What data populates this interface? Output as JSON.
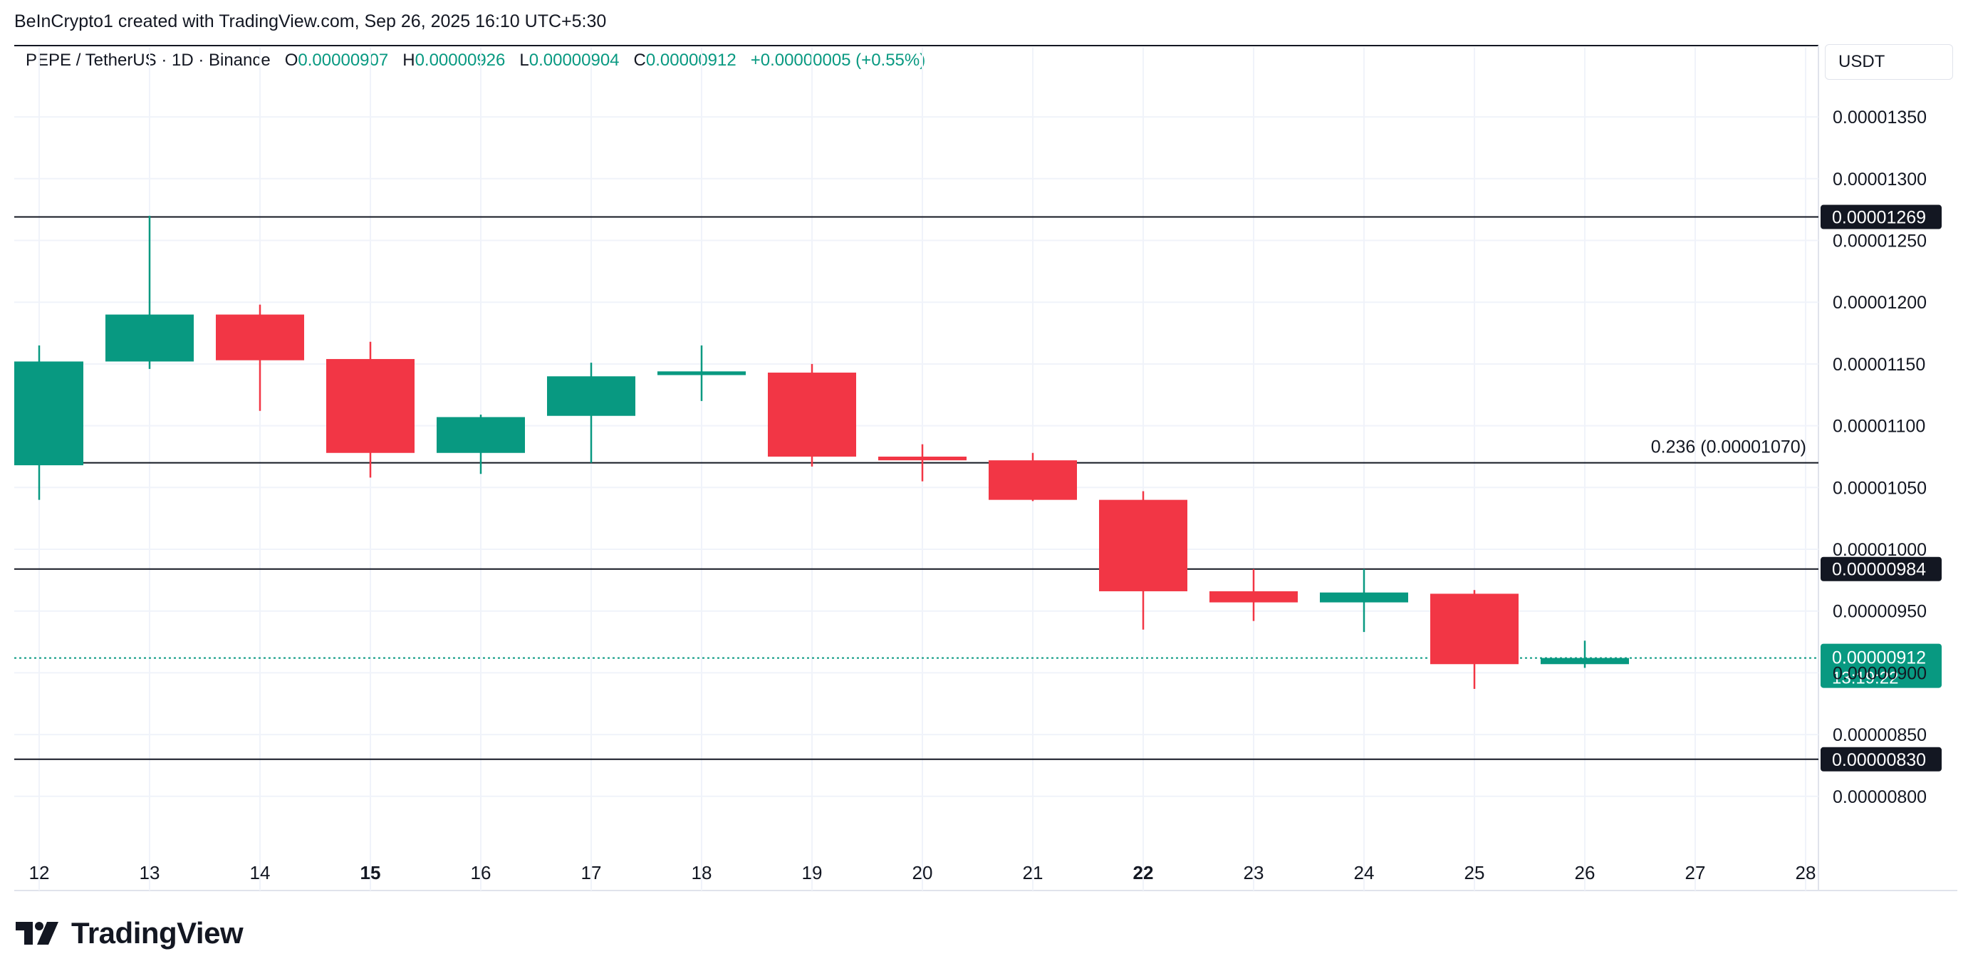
{
  "header": {
    "attribution": "BeInCrypto1 created with TradingView.com, Sep 26, 2025 16:10 UTC+5:30",
    "symbol": "PEPE / TetherUS · 1D · Binance",
    "open_label": "O",
    "open_value": "0.00000907",
    "high_label": "H",
    "high_value": "0.00000926",
    "low_label": "L",
    "low_value": "0.00000904",
    "close_label": "C",
    "close_value": "0.00000912",
    "change": "+0.00000005 (+0.55%)"
  },
  "price_scale": {
    "unit": "USDT"
  },
  "footer": {
    "brand": "TradingView"
  },
  "colors": {
    "up": "#089981",
    "down": "#f23645",
    "grid": "#f0f3fa",
    "line": "#131722"
  },
  "chart_data": {
    "type": "candlestick",
    "x_labels": [
      {
        "day": 12,
        "label": "12",
        "bold": false
      },
      {
        "day": 13,
        "label": "13",
        "bold": false
      },
      {
        "day": 14,
        "label": "14",
        "bold": false
      },
      {
        "day": 15,
        "label": "15",
        "bold": true
      },
      {
        "day": 16,
        "label": "16",
        "bold": false
      },
      {
        "day": 17,
        "label": "17",
        "bold": false
      },
      {
        "day": 18,
        "label": "18",
        "bold": false
      },
      {
        "day": 19,
        "label": "19",
        "bold": false
      },
      {
        "day": 20,
        "label": "20",
        "bold": false
      },
      {
        "day": 21,
        "label": "21",
        "bold": false
      },
      {
        "day": 22,
        "label": "22",
        "bold": true
      },
      {
        "day": 23,
        "label": "23",
        "bold": false
      },
      {
        "day": 24,
        "label": "24",
        "bold": false
      },
      {
        "day": 25,
        "label": "25",
        "bold": false
      },
      {
        "day": 26,
        "label": "26",
        "bold": false
      },
      {
        "day": 27,
        "label": "27",
        "bold": false
      },
      {
        "day": 28,
        "label": "28",
        "bold": false
      }
    ],
    "x_range": [
      11.8,
      28.1
    ],
    "y_ticks": [
      {
        "value": 1.35e-05,
        "label": "0.00001350"
      },
      {
        "value": 1.3e-05,
        "label": "0.00001300"
      },
      {
        "value": 1.25e-05,
        "label": "0.00001250"
      },
      {
        "value": 1.2e-05,
        "label": "0.00001200"
      },
      {
        "value": 1.15e-05,
        "label": "0.00001150"
      },
      {
        "value": 1.1e-05,
        "label": "0.00001100"
      },
      {
        "value": 1.05e-05,
        "label": "0.00001050"
      },
      {
        "value": 1e-05,
        "label": "0.00001000"
      },
      {
        "value": 9.5e-06,
        "label": "0.00000950"
      },
      {
        "value": 9e-06,
        "label": "0.00000900"
      },
      {
        "value": 8.5e-06,
        "label": "0.00000850"
      },
      {
        "value": 8e-06,
        "label": "0.00000800"
      }
    ],
    "candles": [
      {
        "day": 12,
        "open": 1.068e-05,
        "high": 1.165e-05,
        "low": 1.04e-05,
        "close": 1.152e-05
      },
      {
        "day": 13,
        "open": 1.152e-05,
        "high": 1.27e-05,
        "low": 1.146e-05,
        "close": 1.19e-05
      },
      {
        "day": 14,
        "open": 1.19e-05,
        "high": 1.198e-05,
        "low": 1.112e-05,
        "close": 1.153e-05
      },
      {
        "day": 15,
        "open": 1.154e-05,
        "high": 1.168e-05,
        "low": 1.058e-05,
        "close": 1.078e-05
      },
      {
        "day": 16,
        "open": 1.078e-05,
        "high": 1.109e-05,
        "low": 1.061e-05,
        "close": 1.107e-05
      },
      {
        "day": 17,
        "open": 1.108e-05,
        "high": 1.151e-05,
        "low": 1.07e-05,
        "close": 1.14e-05
      },
      {
        "day": 18,
        "open": 1.141e-05,
        "high": 1.165e-05,
        "low": 1.12e-05,
        "close": 1.144e-05
      },
      {
        "day": 19,
        "open": 1.143e-05,
        "high": 1.15e-05,
        "low": 1.067e-05,
        "close": 1.075e-05
      },
      {
        "day": 20,
        "open": 1.075e-05,
        "high": 1.085e-05,
        "low": 1.055e-05,
        "close": 1.072e-05
      },
      {
        "day": 21,
        "open": 1.072e-05,
        "high": 1.078e-05,
        "low": 1.039e-05,
        "close": 1.04e-05
      },
      {
        "day": 22,
        "open": 1.04e-05,
        "high": 1.047e-05,
        "low": 9.35e-06,
        "close": 9.66e-06
      },
      {
        "day": 23,
        "open": 9.66e-06,
        "high": 9.84e-06,
        "low": 9.42e-06,
        "close": 9.57e-06
      },
      {
        "day": 24,
        "open": 9.57e-06,
        "high": 9.84e-06,
        "low": 9.33e-06,
        "close": 9.65e-06
      },
      {
        "day": 25,
        "open": 9.64e-06,
        "high": 9.67e-06,
        "low": 8.87e-06,
        "close": 9.07e-06
      },
      {
        "day": 26,
        "open": 9.07e-06,
        "high": 9.26e-06,
        "low": 9.04e-06,
        "close": 9.12e-06
      }
    ],
    "levels": [
      {
        "value": 1.269e-05,
        "label": "0.00001269"
      },
      {
        "value": 1.07e-05,
        "label": "",
        "annotation": "0.236 (0.00001070)"
      },
      {
        "value": 9.84e-06,
        "label": "0.00000984"
      },
      {
        "value": 8.3e-06,
        "label": "0.00000830"
      }
    ],
    "last_price": {
      "value": 9.12e-06,
      "label": "0.00000912",
      "countdown": "13:19:22"
    }
  }
}
